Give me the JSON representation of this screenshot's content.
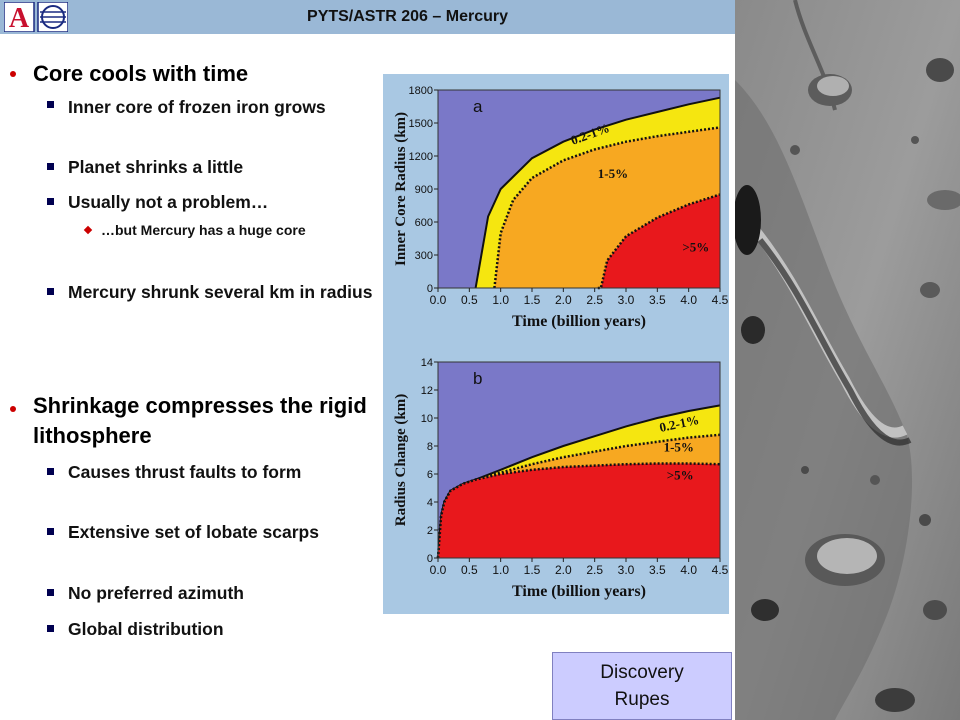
{
  "header": {
    "title": "PYTS/ASTR 206 – Mercury"
  },
  "logo": {
    "letter": "A"
  },
  "bullets": [
    {
      "level": 1,
      "text": "Core cools with time"
    },
    {
      "level": 2,
      "text": "Inner core of frozen iron grows"
    },
    {
      "level": 2,
      "text": "Planet shrinks a little"
    },
    {
      "level": 2,
      "text": "Usually not a problem…"
    },
    {
      "level": 3,
      "text": "…but Mercury has a huge core"
    },
    {
      "level": 2,
      "text": "Mercury shrunk several km in radius"
    },
    {
      "level": 1,
      "text": "Shrinkage compresses the rigid lithosphere"
    },
    {
      "level": 2,
      "text": "Causes thrust faults to form"
    },
    {
      "level": 2,
      "text": "Extensive set of lobate scarps"
    },
    {
      "level": 2,
      "text": "No preferred azimuth"
    },
    {
      "level": 2,
      "text": "Global distribution"
    }
  ],
  "chart_data": [
    {
      "type": "area",
      "panel_label": "a",
      "xlabel": "Time (billion years)",
      "ylabel": "Inner Core Radius (km)",
      "xlim": [
        0.0,
        4.5
      ],
      "ylim": [
        0,
        1800
      ],
      "x_ticks": [
        "0.0",
        "0.5",
        "1.0",
        "1.5",
        "2.0",
        "2.5",
        "3.0",
        "3.5",
        "4.0",
        "4.5"
      ],
      "y_ticks": [
        "0",
        "300",
        "600",
        "900",
        "1200",
        "1500",
        "1800"
      ],
      "series": [
        {
          "name": "0.2-1%",
          "x": [
            0.6,
            0.8,
            1.0,
            1.5,
            2.0,
            2.5,
            3.0,
            3.5,
            4.0,
            4.5
          ],
          "values": [
            0,
            650,
            900,
            1180,
            1330,
            1440,
            1530,
            1600,
            1670,
            1730
          ]
        },
        {
          "name": "1-5%",
          "x": [
            0.9,
            1.0,
            1.2,
            1.5,
            2.0,
            2.5,
            3.0,
            3.5,
            4.0,
            4.5
          ],
          "values": [
            0,
            500,
            800,
            1000,
            1160,
            1260,
            1330,
            1380,
            1420,
            1460
          ]
        },
        {
          "name": ">5%",
          "x": [
            2.55,
            2.6,
            2.7,
            3.0,
            3.5,
            4.0,
            4.5
          ],
          "values": [
            0,
            0,
            250,
            470,
            640,
            760,
            850
          ]
        }
      ]
    },
    {
      "type": "area",
      "panel_label": "b",
      "xlabel": "Time (billion years)",
      "ylabel": "Radius Change (km)",
      "xlim": [
        0.0,
        4.5
      ],
      "ylim": [
        0,
        14
      ],
      "x_ticks": [
        "0.0",
        "0.5",
        "1.0",
        "1.5",
        "2.0",
        "2.5",
        "3.0",
        "3.5",
        "4.0",
        "4.5"
      ],
      "y_ticks": [
        "0",
        "2",
        "4",
        "6",
        "8",
        "10",
        "12",
        "14"
      ],
      "series": [
        {
          "name": "0.2-1%",
          "x": [
            0.0,
            0.05,
            0.1,
            0.2,
            0.4,
            0.6,
            1.0,
            1.5,
            2.0,
            2.5,
            3.0,
            3.5,
            4.0,
            4.5
          ],
          "values": [
            0,
            3.0,
            4.0,
            4.8,
            5.3,
            5.6,
            6.3,
            7.2,
            8.0,
            8.7,
            9.4,
            10.0,
            10.5,
            10.9
          ]
        },
        {
          "name": "1-5%",
          "x": [
            0.0,
            0.05,
            0.1,
            0.2,
            0.4,
            0.6,
            1.0,
            1.5,
            2.0,
            2.5,
            3.0,
            3.5,
            4.0,
            4.5
          ],
          "values": [
            0,
            3.0,
            4.0,
            4.8,
            5.3,
            5.6,
            6.1,
            6.7,
            7.2,
            7.6,
            8.0,
            8.3,
            8.6,
            8.8
          ]
        },
        {
          "name": ">5%",
          "x": [
            0.0,
            0.05,
            0.1,
            0.2,
            0.4,
            0.6,
            1.0,
            1.5,
            2.0,
            2.5,
            3.0,
            3.5,
            4.0,
            4.5
          ],
          "values": [
            0,
            3.0,
            4.0,
            4.8,
            5.3,
            5.6,
            6.0,
            6.3,
            6.5,
            6.6,
            6.7,
            6.75,
            6.75,
            6.7
          ]
        }
      ],
      "colors": {
        "background": "#7a78c8",
        "band1": "#f5e610",
        "band2": "#f7a821",
        "band3": "#e8181c"
      }
    }
  ],
  "caption": {
    "line1": "Discovery",
    "line2": "Rupes"
  }
}
